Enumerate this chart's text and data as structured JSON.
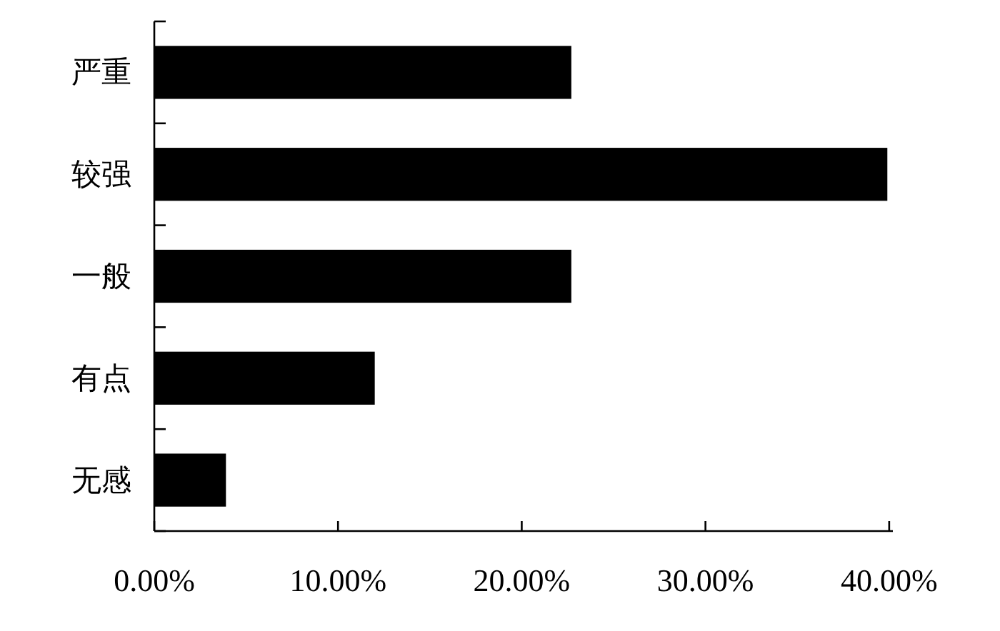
{
  "chart_data": {
    "type": "bar",
    "orientation": "horizontal",
    "categories": [
      "严重",
      "较强",
      "一般",
      "有点",
      "无感"
    ],
    "values": [
      22.7,
      39.9,
      22.7,
      12.0,
      3.9
    ],
    "color": "#000000",
    "xlim": [
      0,
      40.2
    ],
    "xticks": [
      {
        "value": 0,
        "label": "0.00%"
      },
      {
        "value": 10,
        "label": "10.00%"
      },
      {
        "value": 20,
        "label": "20.00%"
      },
      {
        "value": 30,
        "label": "30.00%"
      },
      {
        "value": 40,
        "label": "40.00%"
      }
    ]
  }
}
